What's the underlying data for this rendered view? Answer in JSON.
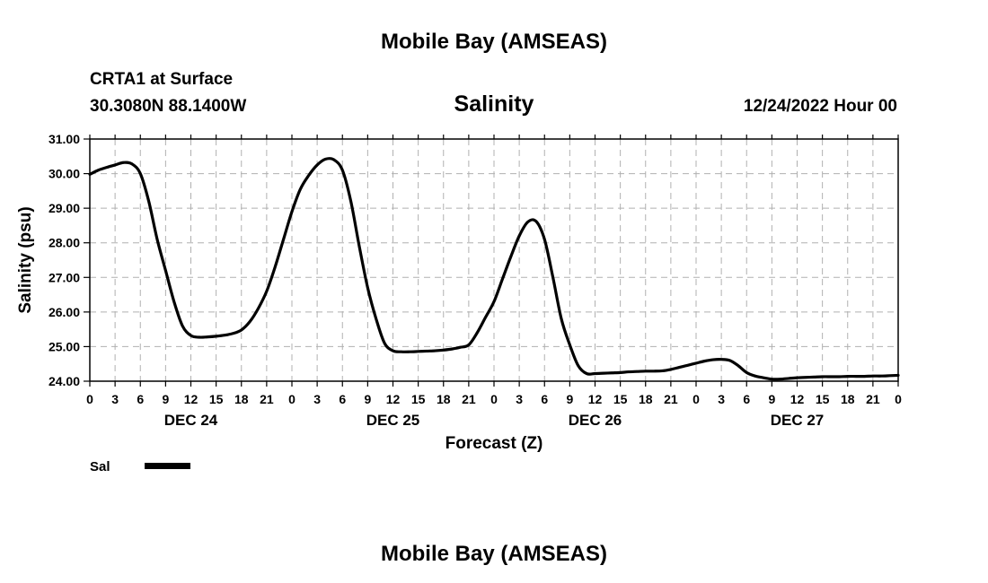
{
  "header": {
    "title": "Mobile Bay (AMSEAS)",
    "station": "CRTA1 at Surface",
    "coords": "30.3080N  88.1400W",
    "variable": "Salinity",
    "run_time": "12/24/2022 Hour 00"
  },
  "footer": {
    "title": "Mobile Bay (AMSEAS)"
  },
  "chart_data": {
    "type": "line",
    "ylabel": "Salinity (psu)",
    "xlabel": "Forecast (Z)",
    "ylim": [
      24,
      31
    ],
    "xlim": [
      0,
      96
    ],
    "y_ticks": [
      "24.00",
      "25.00",
      "26.00",
      "27.00",
      "28.00",
      "29.00",
      "30.00",
      "31.00"
    ],
    "x_tick_labels": [
      "0",
      "3",
      "6",
      "9",
      "12",
      "15",
      "18",
      "21",
      "0",
      "3",
      "6",
      "9",
      "12",
      "15",
      "18",
      "21",
      "0",
      "3",
      "6",
      "9",
      "12",
      "15",
      "18",
      "21",
      "0",
      "3",
      "6",
      "9",
      "12",
      "15",
      "18",
      "21",
      "0"
    ],
    "day_labels": [
      {
        "label": "DEC 24",
        "at_hour": 12
      },
      {
        "label": "DEC 25",
        "at_hour": 36
      },
      {
        "label": "DEC 26",
        "at_hour": 60
      },
      {
        "label": "DEC 27",
        "at_hour": 84
      }
    ],
    "grid": true,
    "legend_position": "bottom-left",
    "series": [
      {
        "name": "Sal",
        "color": "#000000",
        "x": [
          0,
          1,
          2,
          3,
          4,
          5,
          6,
          7,
          8,
          9,
          10,
          11,
          12,
          13,
          14,
          15,
          16,
          17,
          18,
          19,
          20,
          21,
          22,
          23,
          24,
          25,
          26,
          27,
          28,
          29,
          30,
          31,
          32,
          33,
          34,
          35,
          36,
          37,
          38,
          39,
          40,
          41,
          42,
          43,
          44,
          45,
          46,
          47,
          48,
          49,
          50,
          51,
          52,
          53,
          54,
          55,
          56,
          57,
          58,
          59,
          60,
          61,
          62,
          63,
          64,
          65,
          66,
          67,
          68,
          69,
          70,
          71,
          72,
          73,
          74,
          75,
          76,
          77,
          78,
          79,
          80,
          81,
          82,
          83,
          84,
          85,
          86,
          87,
          88,
          89,
          90,
          91,
          92,
          93,
          94,
          95,
          96
        ],
        "values": [
          29.98,
          30.1,
          30.18,
          30.25,
          30.32,
          30.28,
          30.0,
          29.2,
          28.1,
          27.2,
          26.3,
          25.6,
          25.32,
          25.27,
          25.28,
          25.3,
          25.33,
          25.38,
          25.48,
          25.72,
          26.1,
          26.6,
          27.3,
          28.1,
          28.9,
          29.55,
          29.95,
          30.25,
          30.42,
          30.4,
          30.1,
          29.2,
          27.9,
          26.7,
          25.8,
          25.1,
          24.88,
          24.85,
          24.85,
          24.86,
          24.87,
          24.88,
          24.9,
          24.93,
          24.98,
          25.05,
          25.4,
          25.85,
          26.3,
          26.95,
          27.6,
          28.2,
          28.6,
          28.62,
          28.1,
          27.0,
          25.8,
          25.05,
          24.45,
          24.22,
          24.22,
          24.23,
          24.24,
          24.25,
          24.27,
          24.28,
          24.29,
          24.29,
          24.3,
          24.34,
          24.4,
          24.46,
          24.52,
          24.58,
          24.62,
          24.63,
          24.6,
          24.45,
          24.25,
          24.15,
          24.1,
          24.06,
          24.06,
          24.08,
          24.1,
          24.11,
          24.12,
          24.13,
          24.13,
          24.13,
          24.14,
          24.14,
          24.14,
          24.15,
          24.15,
          24.16,
          24.17
        ]
      }
    ]
  }
}
